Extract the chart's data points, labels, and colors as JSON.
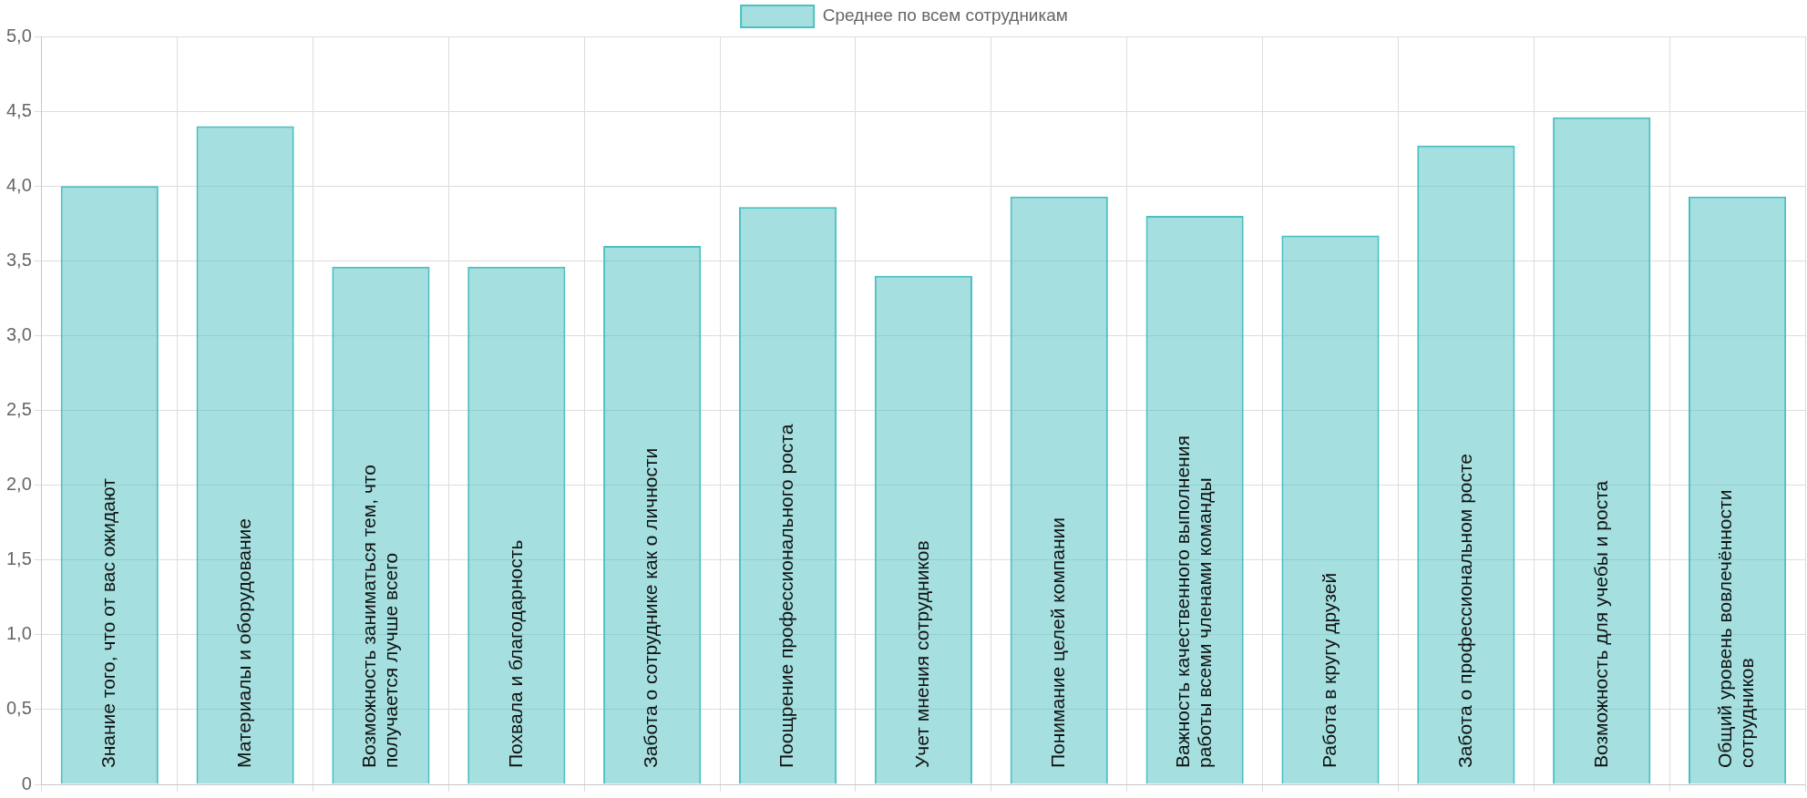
{
  "chart_data": {
    "type": "bar",
    "categories": [
      "Знание того, что от вас ожидают",
      "Материалы и оборудование",
      "Возможность заниматься тем, что получается лучше всего",
      "Похвала и благодарность",
      "Забота о сотруднике как о личности",
      "Поощрение профессионального роста",
      "Учет мнения сотрудников",
      "Понимание целей компании",
      "Важность качественного выполнения работы всеми членами команды",
      "Работа в кругу друзей",
      "Забота о профессиональном росте",
      "Возможность для учебы и роста",
      "Общий уровень вовлечённости сотрудников"
    ],
    "series": [
      {
        "name": "Среднее по всем сотрудникам",
        "color": "#4bc0c0",
        "values": [
          4.0,
          4.4,
          3.46,
          3.46,
          3.6,
          3.86,
          3.4,
          3.93,
          3.8,
          3.67,
          4.27,
          4.46,
          3.93
        ]
      }
    ],
    "ylim": [
      0,
      5
    ],
    "yticks": [
      0,
      {
        "value": 0.5,
        "label": "0,5"
      },
      {
        "value": 1,
        "label": "1,0"
      },
      {
        "value": 1.5,
        "label": "1,5"
      },
      {
        "value": 2,
        "label": "2,0"
      },
      {
        "value": 2.5,
        "label": "2,5"
      },
      {
        "value": 3,
        "label": "3,0"
      },
      {
        "value": 3.5,
        "label": "3,5"
      },
      {
        "value": 4,
        "label": "4,0"
      },
      {
        "value": 4.5,
        "label": "4,5"
      },
      {
        "value": 5,
        "label": "5,0"
      }
    ],
    "grid": true,
    "legend": "top",
    "tick_labels": "y"
  }
}
